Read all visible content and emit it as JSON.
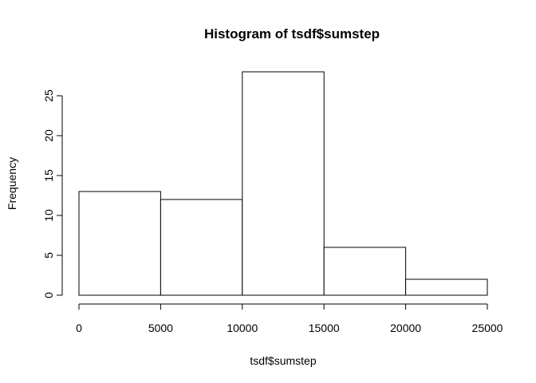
{
  "chart_data": {
    "type": "bar",
    "title": "Histogram of tsdf$sumstep",
    "xlabel": "tsdf$sumstep",
    "ylabel": "Frequency",
    "bins": [
      {
        "start": 0,
        "end": 5000,
        "count": 13
      },
      {
        "start": 5000,
        "end": 10000,
        "count": 12
      },
      {
        "start": 10000,
        "end": 15000,
        "count": 28
      },
      {
        "start": 15000,
        "end": 20000,
        "count": 6
      },
      {
        "start": 20000,
        "end": 25000,
        "count": 2
      }
    ],
    "xlim": [
      0,
      25000
    ],
    "ylim": [
      0,
      28
    ],
    "x_ticks": [
      "0",
      "5000",
      "10000",
      "15000",
      "20000",
      "25000"
    ],
    "x_tick_values": [
      0,
      5000,
      10000,
      15000,
      20000,
      25000
    ],
    "y_ticks": [
      "0",
      "5",
      "10",
      "15",
      "20",
      "25"
    ],
    "y_tick_values": [
      0,
      5,
      10,
      15,
      20,
      25
    ],
    "grid": false,
    "bar_fill": "#ffffff",
    "bar_stroke": "#000000"
  }
}
